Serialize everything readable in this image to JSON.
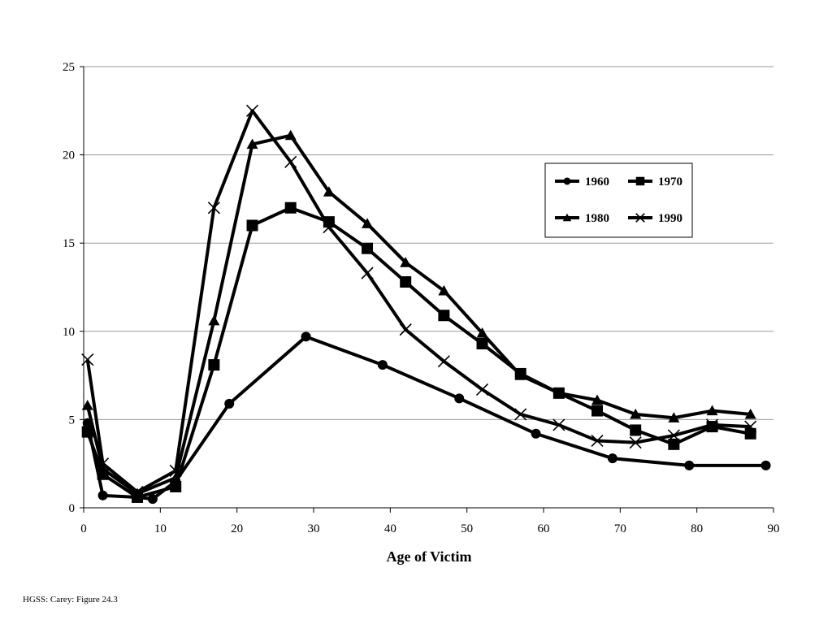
{
  "caption": "HGSS: Carey: Figure 24.3",
  "chart_data": {
    "type": "line",
    "title": "",
    "xlabel": "Age of Victim",
    "ylabel": "",
    "xlim": [
      0,
      90
    ],
    "ylim": [
      0,
      25
    ],
    "xticks": [
      0,
      10,
      20,
      30,
      40,
      50,
      60,
      70,
      80,
      90
    ],
    "yticks": [
      0,
      5,
      10,
      15,
      20,
      25
    ],
    "grid": "horizontal",
    "legend_position": "top-right",
    "series": [
      {
        "name": "1960",
        "marker": "circle",
        "points": [
          [
            0.5,
            4.8
          ],
          [
            2.5,
            0.7
          ],
          [
            7,
            0.6
          ],
          [
            9,
            0.5
          ],
          [
            12,
            1.5
          ],
          [
            19,
            5.9
          ],
          [
            29,
            9.7
          ],
          [
            39,
            8.1
          ],
          [
            49,
            6.2
          ],
          [
            59,
            4.2
          ],
          [
            69,
            2.8
          ],
          [
            79,
            2.4
          ],
          [
            89,
            2.4
          ]
        ]
      },
      {
        "name": "1970",
        "marker": "square",
        "points": [
          [
            0.5,
            4.3
          ],
          [
            2.5,
            1.9
          ],
          [
            7,
            0.6
          ],
          [
            12,
            1.2
          ],
          [
            17,
            8.1
          ],
          [
            22,
            16.0
          ],
          [
            27,
            17.0
          ],
          [
            32,
            16.2
          ],
          [
            37,
            14.7
          ],
          [
            42,
            12.8
          ],
          [
            47,
            10.9
          ],
          [
            52,
            9.3
          ],
          [
            57,
            7.6
          ],
          [
            62,
            6.5
          ],
          [
            67,
            5.5
          ],
          [
            72,
            4.4
          ],
          [
            77,
            3.6
          ],
          [
            82,
            4.6
          ],
          [
            87,
            4.2
          ]
        ]
      },
      {
        "name": "1980",
        "marker": "triangle",
        "points": [
          [
            0.5,
            5.8
          ],
          [
            2.5,
            2.2
          ],
          [
            7,
            0.8
          ],
          [
            12,
            1.7
          ],
          [
            17,
            10.6
          ],
          [
            22,
            20.6
          ],
          [
            27,
            21.1
          ],
          [
            32,
            17.9
          ],
          [
            37,
            16.1
          ],
          [
            42,
            13.9
          ],
          [
            47,
            12.3
          ],
          [
            52,
            9.9
          ],
          [
            57,
            7.5
          ],
          [
            62,
            6.5
          ],
          [
            67,
            6.1
          ],
          [
            72,
            5.3
          ],
          [
            77,
            5.1
          ],
          [
            82,
            5.5
          ],
          [
            87,
            5.3
          ]
        ]
      },
      {
        "name": "1990",
        "marker": "x",
        "points": [
          [
            0.5,
            8.4
          ],
          [
            2.5,
            2.5
          ],
          [
            7,
            0.9
          ],
          [
            12,
            2.1
          ],
          [
            17,
            17.0
          ],
          [
            22,
            22.5
          ],
          [
            27,
            19.6
          ],
          [
            32,
            15.9
          ],
          [
            37,
            13.3
          ],
          [
            42,
            10.1
          ],
          [
            47,
            8.3
          ],
          [
            52,
            6.7
          ],
          [
            57,
            5.3
          ],
          [
            62,
            4.7
          ],
          [
            67,
            3.8
          ],
          [
            72,
            3.7
          ],
          [
            77,
            4.1
          ],
          [
            82,
            4.7
          ],
          [
            87,
            4.6
          ]
        ]
      }
    ]
  }
}
